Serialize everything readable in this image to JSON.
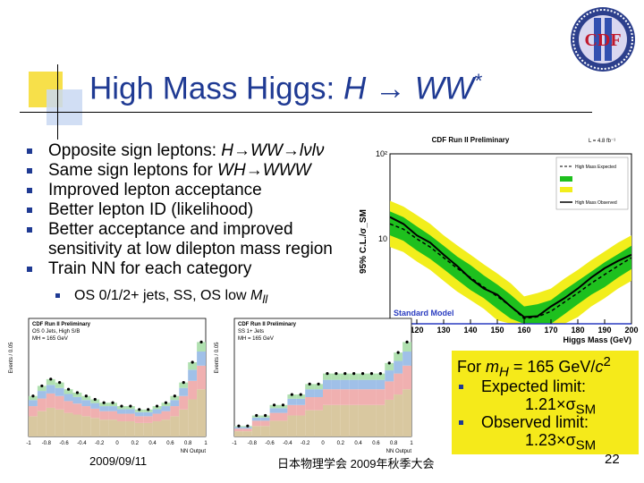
{
  "slide": {
    "title_main": "High Mass Higgs: ",
    "title_h": "H",
    "title_arrow": "→",
    "title_ww": "WW",
    "title_sup": "*",
    "logo_text": "CDF",
    "bullets": [
      {
        "pre": "Opposite sign leptons: ",
        "ital": "H→WW→lνlν"
      },
      {
        "pre": "Same sign leptons for ",
        "ital": "WH→WWW"
      },
      {
        "pre": "Improved lepton acceptance",
        "ital": ""
      },
      {
        "pre": "Better lepton ID (likelihood)",
        "ital": ""
      },
      {
        "pre": "Better acceptance and improved sensitivity at low dilepton mass region",
        "ital": ""
      },
      {
        "pre": "Train NN for each category",
        "ital": ""
      }
    ],
    "sub_bullet": {
      "pre": "OS 0/1/2+ jets, SS, OS low ",
      "ital": "M",
      "sub": "ll"
    },
    "limits": {
      "header_pre": "For ",
      "header_m": "m",
      "header_sub": "H",
      "header_post": " = 165 GeV/",
      "header_c": "c",
      "header_sup": "2",
      "expected_label": "Expected limit:",
      "expected_value": "1.21×σ",
      "expected_sub": "SM",
      "observed_label": "Observed limit:",
      "observed_value": "1.23×σ",
      "observed_sub": "SM"
    },
    "footer": {
      "date": "2009/09/11",
      "conference": "日本物理学会 2009年秋季大会",
      "page": "22"
    }
  },
  "colors": {
    "title": "#1f3a93",
    "bullet": "#1f3a93",
    "band1": "#1ec01e",
    "band2": "#f2ee1c",
    "limit_box": "#f5ea1a"
  },
  "chart_data": [
    {
      "type": "line",
      "title": "CDF Run II Preliminary",
      "annotation": "L = 4.8 fb⁻¹",
      "xlabel": "Higgs Mass (GeV)",
      "ylabel": "95% C.L./σ_SM",
      "yscale": "log",
      "xlim": [
        110,
        200
      ],
      "ylim": [
        1,
        100
      ],
      "x_ticks": [
        "110",
        "120",
        "130",
        "140",
        "150",
        "160",
        "170",
        "180",
        "190",
        "200"
      ],
      "y_ticks": [
        "1",
        "10",
        "10²"
      ],
      "reference_label": "Standard Model",
      "legend": [
        "High Mass Expected",
        "High Mass Observed"
      ],
      "x": [
        110,
        115,
        120,
        125,
        130,
        135,
        140,
        145,
        150,
        155,
        160,
        165,
        170,
        175,
        180,
        185,
        190,
        195,
        200
      ],
      "series": [
        {
          "name": "High Mass Expected",
          "values": [
            15,
            13,
            10,
            8,
            6,
            4.5,
            3.5,
            2.7,
            2.1,
            1.6,
            1.15,
            1.21,
            1.4,
            1.8,
            2.3,
            3,
            3.8,
            4.8,
            6
          ]
        },
        {
          "name": "High Mass Observed",
          "values": [
            18,
            15,
            11,
            9,
            6.5,
            4.8,
            3.4,
            2.6,
            2.2,
            1.6,
            1.2,
            1.23,
            1.6,
            2,
            2.6,
            3.5,
            4.5,
            5.5,
            6.5
          ]
        }
      ],
      "band_1sigma": {
        "low": [
          11,
          9.5,
          7.3,
          5.8,
          4.4,
          3.3,
          2.5,
          2,
          1.5,
          1.15,
          0.85,
          0.88,
          1,
          1.3,
          1.7,
          2.2,
          2.7,
          3.5,
          4.4
        ],
        "high": [
          21,
          18,
          14,
          11,
          8.3,
          6.2,
          4.9,
          3.7,
          2.9,
          2.2,
          1.6,
          1.7,
          1.9,
          2.5,
          3.2,
          4.1,
          5.3,
          6.6,
          8.3
        ]
      },
      "band_2sigma": {
        "low": [
          8,
          7,
          5.4,
          4.3,
          3.2,
          2.4,
          1.9,
          1.5,
          1.1,
          0.85,
          0.62,
          0.65,
          0.75,
          0.97,
          1.2,
          1.6,
          2,
          2.6,
          3.2
        ],
        "high": [
          28,
          24,
          19,
          15,
          11,
          8.4,
          6.5,
          5,
          3.9,
          3,
          2.1,
          2.3,
          2.6,
          3.4,
          4.3,
          5.6,
          7.1,
          9,
          11
        ]
      }
    },
    {
      "type": "bar",
      "title": "CDF Run II Preliminary",
      "subtitle": "OS 0 Jets, High S/B",
      "annotation": "MH = 165 GeV",
      "xlabel": "NN Output",
      "ylabel": "Events / 0.05",
      "x_ticks": [
        "-1",
        "-0.8",
        "-0.6",
        "-0.4",
        "-0.2",
        "0",
        "0.2",
        "0.4",
        "0.6",
        "0.8",
        "1"
      ],
      "categories": [
        "-0.95",
        "-0.85",
        "-0.75",
        "-0.65",
        "-0.55",
        "-0.45",
        "-0.35",
        "-0.25",
        "-0.15",
        "-0.05",
        "0.05",
        "0.15",
        "0.25",
        "0.35",
        "0.45",
        "0.55",
        "0.65",
        "0.75",
        "0.85",
        "0.95"
      ],
      "values": [
        12,
        15,
        17,
        16,
        14,
        13,
        12,
        11,
        10,
        10,
        9,
        9,
        8,
        8,
        9,
        10,
        12,
        16,
        22,
        28
      ]
    },
    {
      "type": "bar",
      "title": "CDF Run II Preliminary",
      "subtitle": "SS 1+ Jets",
      "annotation": "MH = 165 GeV",
      "xlabel": "NN Output",
      "ylabel": "Events / 0.05",
      "x_ticks": [
        "-1",
        "-0.8",
        "-0.6",
        "-0.4",
        "-0.2",
        "0",
        "0.2",
        "0.4",
        "0.6",
        "0.8",
        "1"
      ],
      "categories": [
        "-0.95",
        "-0.85",
        "-0.75",
        "-0.65",
        "-0.55",
        "-0.45",
        "-0.35",
        "-0.25",
        "-0.15",
        "-0.05",
        "0.05",
        "0.15",
        "0.25",
        "0.35",
        "0.45",
        "0.55",
        "0.65",
        "0.75",
        "0.85",
        "0.95"
      ],
      "values": [
        1,
        1,
        2,
        2,
        3,
        3,
        4,
        4,
        5,
        5,
        6,
        6,
        6,
        6,
        6,
        6,
        6,
        7,
        8,
        9
      ]
    }
  ]
}
